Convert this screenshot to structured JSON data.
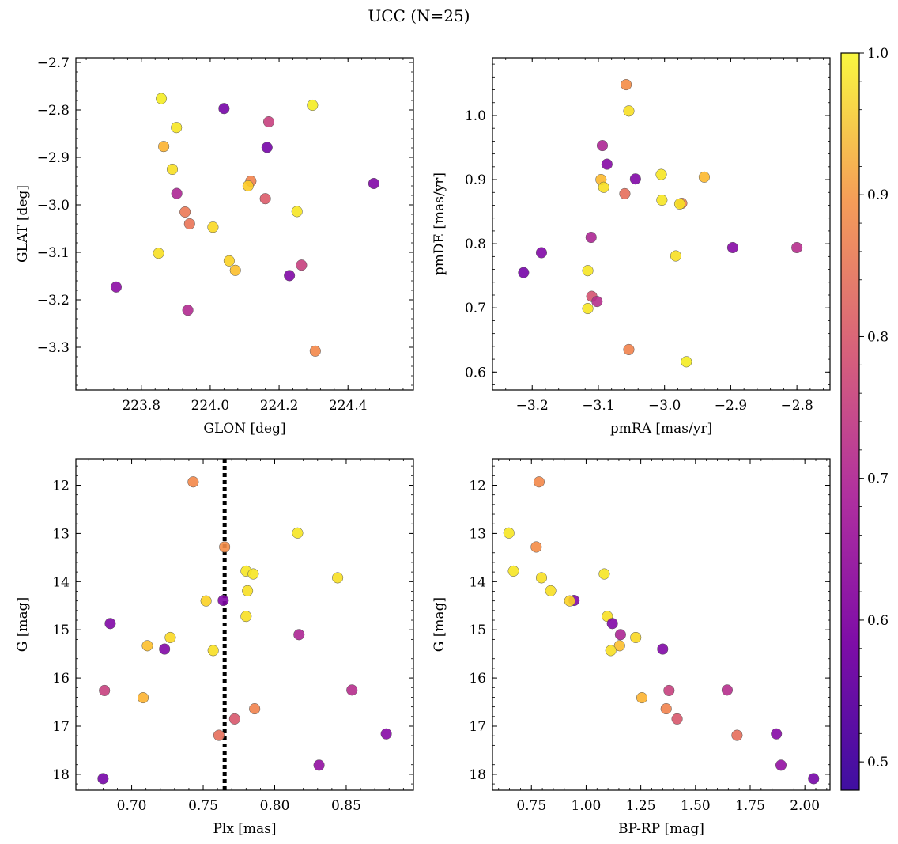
{
  "figure": {
    "title": "UCC (N=25)"
  },
  "colors": {
    "vline": "#000000",
    "marker_edge": "#555555"
  },
  "chart_data": [
    {
      "id": "ax1",
      "type": "scatter",
      "xlabel": "GLON [deg]",
      "ylabel": "GLAT [deg]",
      "xlim": [
        223.61,
        224.59
      ],
      "ylim": [
        -3.39,
        -2.69
      ],
      "xticks": [
        223.8,
        224.0,
        224.2,
        224.4
      ],
      "xtick_labels": [
        "223.8",
        "224.0",
        "224.2",
        "224.4"
      ],
      "yticks": [
        -2.7,
        -2.8,
        -2.9,
        -3.0,
        -3.1,
        -3.2,
        -3.3
      ],
      "ytick_labels": [
        "−2.7",
        "−2.8",
        "−2.9",
        "−3.0",
        "−3.1",
        "−3.2",
        "−3.3"
      ],
      "points": [
        {
          "x": 223.858,
          "y": -2.776,
          "c": 0.98
        },
        {
          "x": 224.04,
          "y": -2.797,
          "c": 0.5
        },
        {
          "x": 224.297,
          "y": -2.79,
          "c": 0.98
        },
        {
          "x": 224.17,
          "y": -2.825,
          "c": 0.66
        },
        {
          "x": 223.902,
          "y": -2.837,
          "c": 0.97
        },
        {
          "x": 223.865,
          "y": -2.877,
          "c": 0.89
        },
        {
          "x": 224.165,
          "y": -2.879,
          "c": 0.5
        },
        {
          "x": 223.89,
          "y": -2.925,
          "c": 0.96
        },
        {
          "x": 224.118,
          "y": -2.95,
          "c": 0.8
        },
        {
          "x": 224.11,
          "y": -2.96,
          "c": 0.93
        },
        {
          "x": 224.475,
          "y": -2.955,
          "c": 0.52
        },
        {
          "x": 223.903,
          "y": -2.976,
          "c": 0.6
        },
        {
          "x": 224.16,
          "y": -2.987,
          "c": 0.72
        },
        {
          "x": 223.927,
          "y": -3.015,
          "c": 0.78
        },
        {
          "x": 224.252,
          "y": -3.014,
          "c": 0.97
        },
        {
          "x": 223.94,
          "y": -3.04,
          "c": 0.77
        },
        {
          "x": 224.008,
          "y": -3.047,
          "c": 0.95
        },
        {
          "x": 223.85,
          "y": -3.102,
          "c": 0.96
        },
        {
          "x": 224.055,
          "y": -3.118,
          "c": 0.94
        },
        {
          "x": 224.073,
          "y": -3.138,
          "c": 0.91
        },
        {
          "x": 224.265,
          "y": -3.127,
          "c": 0.66
        },
        {
          "x": 224.23,
          "y": -3.149,
          "c": 0.52
        },
        {
          "x": 223.727,
          "y": -3.173,
          "c": 0.54
        },
        {
          "x": 223.935,
          "y": -3.222,
          "c": 0.61
        },
        {
          "x": 224.305,
          "y": -3.308,
          "c": 0.81
        }
      ]
    },
    {
      "id": "ax2",
      "type": "scatter",
      "xlabel": "pmRA [mas/yr]",
      "ylabel": "pmDE [mas/yr]",
      "xlim": [
        -3.26,
        -2.75
      ],
      "ylim": [
        0.572,
        1.09
      ],
      "xticks": [
        -3.2,
        -3.1,
        -3.0,
        -2.9,
        -2.8
      ],
      "xtick_labels": [
        "−3.2",
        "−3.1",
        "−3.0",
        "−2.9",
        "−2.8"
      ],
      "yticks": [
        0.6,
        0.7,
        0.8,
        0.9,
        1.0
      ],
      "ytick_labels": [
        "0.6",
        "0.7",
        "0.8",
        "0.9",
        "1.0"
      ],
      "points": [
        {
          "x": -3.058,
          "y": 1.048,
          "c": 0.82
        },
        {
          "x": -3.054,
          "y": 1.007,
          "c": 0.96
        },
        {
          "x": -3.094,
          "y": 0.953,
          "c": 0.6
        },
        {
          "x": -3.087,
          "y": 0.924,
          "c": 0.53
        },
        {
          "x": -3.005,
          "y": 0.908,
          "c": 0.97
        },
        {
          "x": -2.94,
          "y": 0.904,
          "c": 0.9
        },
        {
          "x": -3.044,
          "y": 0.901,
          "c": 0.52
        },
        {
          "x": -3.096,
          "y": 0.9,
          "c": 0.9
        },
        {
          "x": -3.092,
          "y": 0.888,
          "c": 0.96
        },
        {
          "x": -3.06,
          "y": 0.878,
          "c": 0.76
        },
        {
          "x": -3.004,
          "y": 0.868,
          "c": 0.97
        },
        {
          "x": -2.974,
          "y": 0.863,
          "c": 0.8
        },
        {
          "x": -2.977,
          "y": 0.862,
          "c": 0.96
        },
        {
          "x": -3.111,
          "y": 0.81,
          "c": 0.6
        },
        {
          "x": -2.897,
          "y": 0.794,
          "c": 0.53
        },
        {
          "x": -2.8,
          "y": 0.794,
          "c": 0.62
        },
        {
          "x": -3.186,
          "y": 0.786,
          "c": 0.52
        },
        {
          "x": -2.983,
          "y": 0.781,
          "c": 0.96
        },
        {
          "x": -3.116,
          "y": 0.758,
          "c": 0.97
        },
        {
          "x": -3.213,
          "y": 0.755,
          "c": 0.5
        },
        {
          "x": -3.11,
          "y": 0.718,
          "c": 0.7
        },
        {
          "x": -3.102,
          "y": 0.71,
          "c": 0.62
        },
        {
          "x": -3.116,
          "y": 0.699,
          "c": 0.97
        },
        {
          "x": -3.054,
          "y": 0.635,
          "c": 0.8
        },
        {
          "x": -2.967,
          "y": 0.616,
          "c": 0.98
        }
      ]
    },
    {
      "id": "ax3",
      "type": "scatter",
      "xlabel": "Plx [mas]",
      "ylabel": "G [mag]",
      "xlim": [
        0.661,
        0.897
      ],
      "ylim": [
        18.33,
        11.45
      ],
      "y_inverted": true,
      "vline": 0.765,
      "xticks": [
        0.7,
        0.75,
        0.8,
        0.85
      ],
      "xtick_labels": [
        "0.70",
        "0.75",
        "0.80",
        "0.85"
      ],
      "yticks": [
        12,
        13,
        14,
        15,
        16,
        17,
        18
      ],
      "ytick_labels": [
        "12",
        "13",
        "14",
        "15",
        "16",
        "17",
        "18"
      ],
      "points": [
        {
          "x": 0.743,
          "y": 11.93,
          "c": 0.81
        },
        {
          "x": 0.816,
          "y": 12.99,
          "c": 0.97
        },
        {
          "x": 0.765,
          "y": 13.28,
          "c": 0.82
        },
        {
          "x": 0.78,
          "y": 13.78,
          "c": 0.97
        },
        {
          "x": 0.785,
          "y": 13.84,
          "c": 0.97
        },
        {
          "x": 0.844,
          "y": 13.92,
          "c": 0.96
        },
        {
          "x": 0.781,
          "y": 14.19,
          "c": 0.96
        },
        {
          "x": 0.752,
          "y": 14.4,
          "c": 0.94
        },
        {
          "x": 0.764,
          "y": 14.39,
          "c": 0.52
        },
        {
          "x": 0.78,
          "y": 14.72,
          "c": 0.96
        },
        {
          "x": 0.685,
          "y": 14.87,
          "c": 0.52
        },
        {
          "x": 0.817,
          "y": 15.1,
          "c": 0.6
        },
        {
          "x": 0.727,
          "y": 15.16,
          "c": 0.95
        },
        {
          "x": 0.711,
          "y": 15.33,
          "c": 0.91
        },
        {
          "x": 0.723,
          "y": 15.4,
          "c": 0.52
        },
        {
          "x": 0.757,
          "y": 15.43,
          "c": 0.96
        },
        {
          "x": 0.681,
          "y": 16.26,
          "c": 0.66
        },
        {
          "x": 0.854,
          "y": 16.25,
          "c": 0.62
        },
        {
          "x": 0.708,
          "y": 16.41,
          "c": 0.89
        },
        {
          "x": 0.786,
          "y": 16.64,
          "c": 0.8
        },
        {
          "x": 0.772,
          "y": 16.85,
          "c": 0.71
        },
        {
          "x": 0.761,
          "y": 17.19,
          "c": 0.76
        },
        {
          "x": 0.878,
          "y": 17.16,
          "c": 0.53
        },
        {
          "x": 0.831,
          "y": 17.81,
          "c": 0.55
        },
        {
          "x": 0.68,
          "y": 18.09,
          "c": 0.5
        }
      ]
    },
    {
      "id": "ax4",
      "type": "scatter",
      "xlabel": "BP-RP [mag]",
      "ylabel": "G [mag]",
      "xlim": [
        0.572,
        2.115
      ],
      "ylim": [
        18.33,
        11.45
      ],
      "y_inverted": true,
      "xticks": [
        0.75,
        1.0,
        1.25,
        1.5,
        1.75,
        2.0
      ],
      "xtick_labels": [
        "0.75",
        "1.00",
        "1.25",
        "1.50",
        "1.75",
        "2.00"
      ],
      "yticks": [
        12,
        13,
        14,
        15,
        16,
        17,
        18
      ],
      "ytick_labels": [
        "12",
        "13",
        "14",
        "15",
        "16",
        "17",
        "18"
      ],
      "points": [
        {
          "x": 0.785,
          "y": 11.93,
          "c": 0.81
        },
        {
          "x": 0.647,
          "y": 12.99,
          "c": 0.97
        },
        {
          "x": 0.772,
          "y": 13.28,
          "c": 0.82
        },
        {
          "x": 0.668,
          "y": 13.78,
          "c": 0.97
        },
        {
          "x": 1.083,
          "y": 13.84,
          "c": 0.97
        },
        {
          "x": 0.796,
          "y": 13.92,
          "c": 0.96
        },
        {
          "x": 0.838,
          "y": 14.19,
          "c": 0.96
        },
        {
          "x": 0.945,
          "y": 14.39,
          "c": 0.52
        },
        {
          "x": 0.925,
          "y": 14.4,
          "c": 0.94
        },
        {
          "x": 1.097,
          "y": 14.72,
          "c": 0.96
        },
        {
          "x": 1.12,
          "y": 14.87,
          "c": 0.52
        },
        {
          "x": 1.157,
          "y": 15.1,
          "c": 0.6
        },
        {
          "x": 1.227,
          "y": 15.16,
          "c": 0.95
        },
        {
          "x": 1.153,
          "y": 15.33,
          "c": 0.91
        },
        {
          "x": 1.35,
          "y": 15.4,
          "c": 0.52
        },
        {
          "x": 1.113,
          "y": 15.43,
          "c": 0.96
        },
        {
          "x": 1.379,
          "y": 16.26,
          "c": 0.66
        },
        {
          "x": 1.645,
          "y": 16.25,
          "c": 0.62
        },
        {
          "x": 1.255,
          "y": 16.41,
          "c": 0.89
        },
        {
          "x": 1.366,
          "y": 16.64,
          "c": 0.8
        },
        {
          "x": 1.416,
          "y": 16.85,
          "c": 0.71
        },
        {
          "x": 1.69,
          "y": 17.19,
          "c": 0.76
        },
        {
          "x": 1.87,
          "y": 17.16,
          "c": 0.53
        },
        {
          "x": 1.891,
          "y": 17.81,
          "c": 0.55
        },
        {
          "x": 2.04,
          "y": 18.09,
          "c": 0.5
        }
      ]
    }
  ],
  "colorbar": {
    "cmap": "plasma",
    "range": [
      0.48,
      1.0
    ],
    "ticks": [
      0.5,
      0.6,
      0.7,
      0.8,
      0.9,
      1.0
    ],
    "tick_labels": [
      "0.5",
      "0.6",
      "0.7",
      "0.8",
      "0.9",
      "1.0"
    ]
  }
}
